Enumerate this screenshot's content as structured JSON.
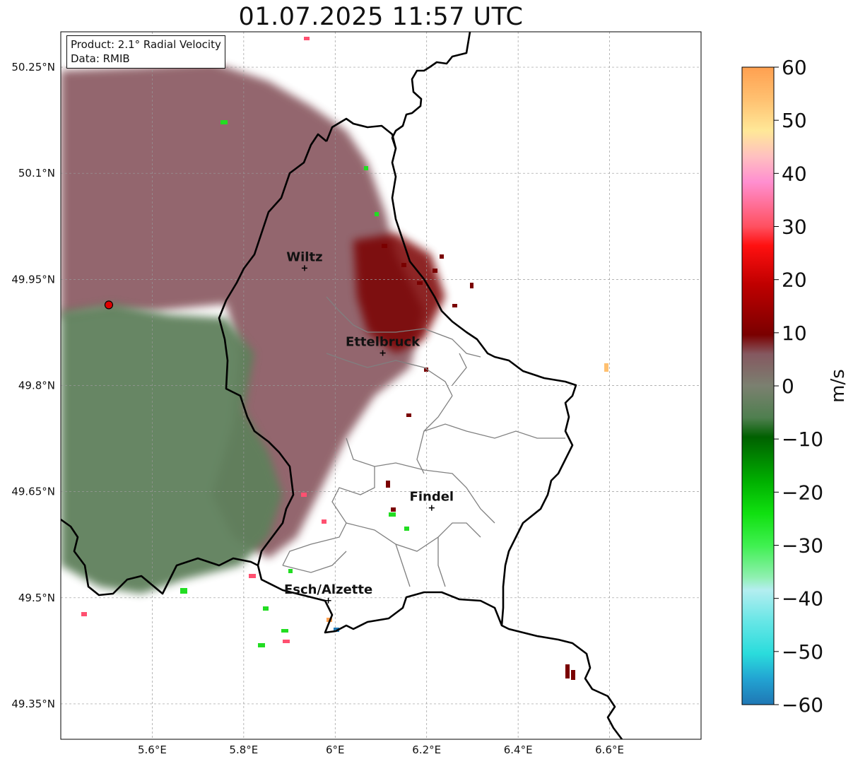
{
  "title": "01.07.2025 11:57 UTC",
  "info_box": {
    "product": "Product: 2.1° Radial Velocity",
    "data_source": "Data: RMIB"
  },
  "map": {
    "lon_range": [
      5.4,
      6.8
    ],
    "lat_range": [
      49.3,
      50.3
    ],
    "lat_ticks": [
      {
        "value": 50.25,
        "label": "50.25°N"
      },
      {
        "value": 50.1,
        "label": "50.1°N"
      },
      {
        "value": 49.95,
        "label": "49.95°N"
      },
      {
        "value": 49.8,
        "label": "49.8°N"
      },
      {
        "value": 49.65,
        "label": "49.65°N"
      },
      {
        "value": 49.5,
        "label": "49.5°N"
      },
      {
        "value": 49.35,
        "label": "49.35°N"
      }
    ],
    "lon_ticks": [
      {
        "value": 5.6,
        "label": "5.6°E"
      },
      {
        "value": 5.8,
        "label": "5.8°E"
      },
      {
        "value": 6.0,
        "label": "6°E"
      },
      {
        "value": 6.2,
        "label": "6.2°E"
      },
      {
        "value": 6.4,
        "label": "6.4°E"
      },
      {
        "value": 6.6,
        "label": "6.6°E"
      }
    ],
    "grid": true,
    "radar_site": {
      "lon": 5.505,
      "lat": 49.914
    },
    "cities": [
      {
        "name": "Wiltz",
        "lon": 5.933,
        "lat": 49.966
      },
      {
        "name": "Ettelbruck",
        "lon": 6.104,
        "lat": 49.846
      },
      {
        "name": "Findel",
        "lon": 6.211,
        "lat": 49.627
      },
      {
        "name": "Esch/Alzette",
        "lon": 5.985,
        "lat": 49.496
      }
    ]
  },
  "colorbar": {
    "label": "m/s",
    "min": -60,
    "max": 60,
    "ticks": [
      {
        "value": 60,
        "label": "60"
      },
      {
        "value": 50,
        "label": "50"
      },
      {
        "value": 40,
        "label": "40"
      },
      {
        "value": 30,
        "label": "30"
      },
      {
        "value": 20,
        "label": "20"
      },
      {
        "value": 10,
        "label": "10"
      },
      {
        "value": 0,
        "label": "0"
      },
      {
        "value": -10,
        "label": "−10"
      },
      {
        "value": -20,
        "label": "−20"
      },
      {
        "value": -30,
        "label": "−30"
      },
      {
        "value": -40,
        "label": "−40"
      },
      {
        "value": -50,
        "label": "−50"
      },
      {
        "value": -60,
        "label": "−60"
      }
    ]
  },
  "colors": {
    "receding_light": "#8a4f5a",
    "approaching_light": "#5b7f5b",
    "strong_receding": "#7a0000",
    "radar_marker": "#e00000"
  }
}
